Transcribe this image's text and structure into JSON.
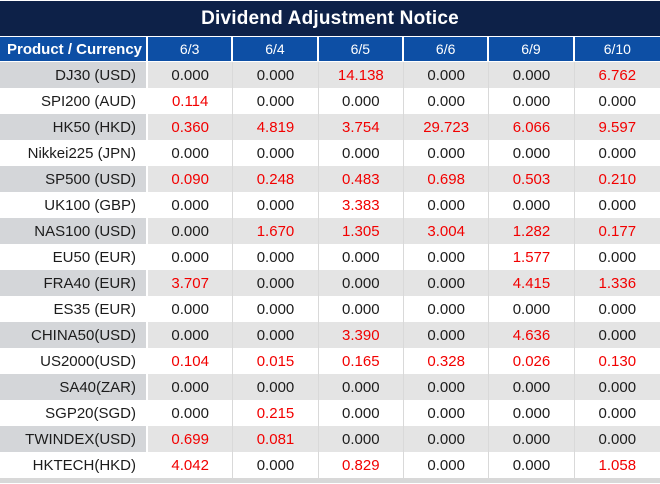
{
  "chart_data": {
    "type": "table",
    "title": "Dividend Adjustment Notice",
    "columns": [
      "Product / Currency",
      "6/3",
      "6/4",
      "6/5",
      "6/6",
      "6/9",
      "6/10"
    ],
    "rows": [
      {
        "product": "DJ30 (USD)",
        "values": [
          "0.000",
          "0.000",
          "14.138",
          "0.000",
          "0.000",
          "6.762"
        ]
      },
      {
        "product": "SPI200 (AUD)",
        "values": [
          "0.114",
          "0.000",
          "0.000",
          "0.000",
          "0.000",
          "0.000"
        ]
      },
      {
        "product": "HK50 (HKD)",
        "values": [
          "0.360",
          "4.819",
          "3.754",
          "29.723",
          "6.066",
          "9.597"
        ]
      },
      {
        "product": "Nikkei225 (JPN)",
        "values": [
          "0.000",
          "0.000",
          "0.000",
          "0.000",
          "0.000",
          "0.000"
        ]
      },
      {
        "product": "SP500 (USD)",
        "values": [
          "0.090",
          "0.248",
          "0.483",
          "0.698",
          "0.503",
          "0.210"
        ]
      },
      {
        "product": "UK100 (GBP)",
        "values": [
          "0.000",
          "0.000",
          "3.383",
          "0.000",
          "0.000",
          "0.000"
        ]
      },
      {
        "product": "NAS100 (USD)",
        "values": [
          "0.000",
          "1.670",
          "1.305",
          "3.004",
          "1.282",
          "0.177"
        ]
      },
      {
        "product": "EU50 (EUR)",
        "values": [
          "0.000",
          "0.000",
          "0.000",
          "0.000",
          "1.577",
          "0.000"
        ]
      },
      {
        "product": "FRA40 (EUR)",
        "values": [
          "3.707",
          "0.000",
          "0.000",
          "0.000",
          "4.415",
          "1.336"
        ]
      },
      {
        "product": "ES35 (EUR)",
        "values": [
          "0.000",
          "0.000",
          "0.000",
          "0.000",
          "0.000",
          "0.000"
        ]
      },
      {
        "product": "CHINA50(USD)",
        "values": [
          "0.000",
          "0.000",
          "3.390",
          "0.000",
          "4.636",
          "0.000"
        ]
      },
      {
        "product": "US2000(USD)",
        "values": [
          "0.104",
          "0.015",
          "0.165",
          "0.328",
          "0.026",
          "0.130"
        ]
      },
      {
        "product": "SA40(ZAR)",
        "values": [
          "0.000",
          "0.000",
          "0.000",
          "0.000",
          "0.000",
          "0.000"
        ]
      },
      {
        "product": "SGP20(SGD)",
        "values": [
          "0.000",
          "0.215",
          "0.000",
          "0.000",
          "0.000",
          "0.000"
        ]
      },
      {
        "product": "TWINDEX(USD)",
        "values": [
          "0.699",
          "0.081",
          "0.000",
          "0.000",
          "0.000",
          "0.000"
        ]
      },
      {
        "product": "HKTECH(HKD)",
        "values": [
          "4.042",
          "0.000",
          "0.829",
          "0.000",
          "0.000",
          "1.058"
        ]
      }
    ],
    "layout": {
      "value_style_rule": "non-zero values rendered red, zero values rendered black",
      "row_striping": "odd rows gray, even rows white"
    }
  },
  "colors": {
    "title_bar_bg": "#0d2148",
    "header_bg": "#0d4fa5",
    "header_text": "#ffffff",
    "stripe_product_bg": "#d4d6d9",
    "stripe_value_bg": "#e4e4e4",
    "highlight_red": "#f20000",
    "text_black": "#1c1c1c",
    "grid_line": "#d9d9d9",
    "bottom_strip": "#d8d8d8"
  }
}
